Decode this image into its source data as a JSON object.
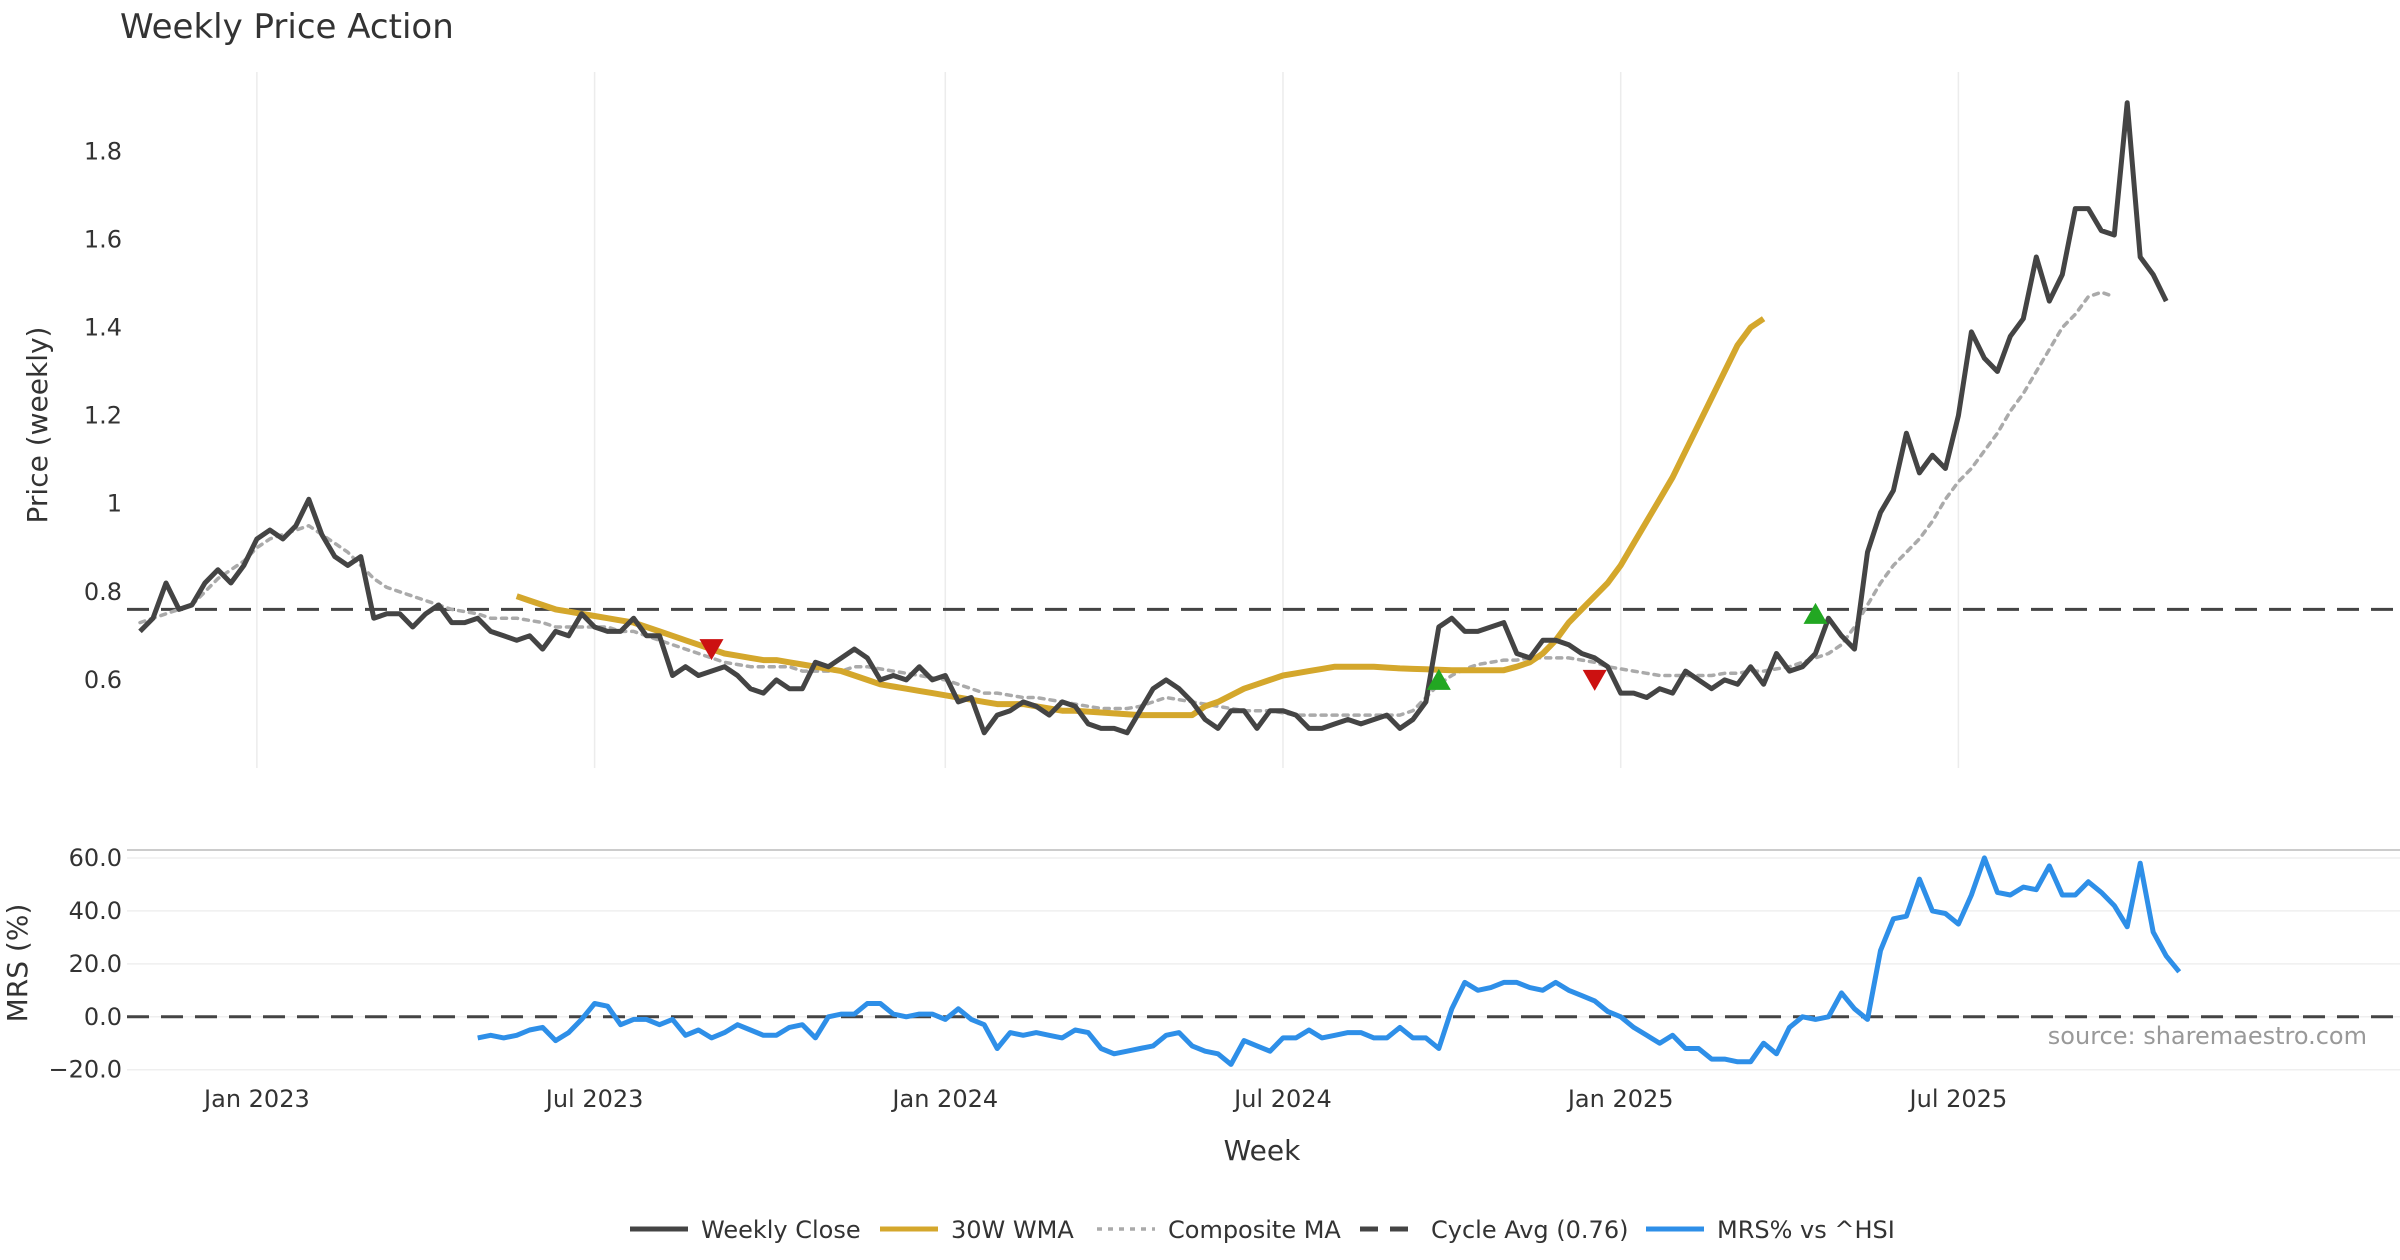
{
  "chart_data": {
    "type": "line",
    "title": "Weekly Price Action",
    "xlabel": "Week",
    "x_ticks": [
      "Jan 2023",
      "Jul 2023",
      "Jan 2024",
      "Jul 2024",
      "Jan 2025",
      "Jul 2025"
    ],
    "x_range_weeks": [
      -10,
      165
    ],
    "price_panel": {
      "ylabel": "Price (weekly)",
      "ylim": [
        0.4,
        1.98
      ],
      "y_ticks": [
        "0.6",
        "0.8",
        "1",
        "1.2",
        "1.4",
        "1.6",
        "1.8"
      ],
      "grid": true
    },
    "mrs_panel": {
      "ylabel": "MRS (%)",
      "ylim": [
        -22,
        63
      ],
      "y_ticks": [
        "−20.0",
        "0.0",
        "20.0",
        "40.0",
        "60.0"
      ],
      "grid": true
    },
    "series": [
      {
        "name": "Weekly Close",
        "panel": "price",
        "color": "#444444",
        "style": "solid",
        "start_week": -9,
        "values": [
          0.71,
          0.74,
          0.82,
          0.76,
          0.77,
          0.82,
          0.85,
          0.82,
          0.86,
          0.92,
          0.94,
          0.92,
          0.95,
          1.01,
          0.93,
          0.88,
          0.86,
          0.88,
          0.74,
          0.75,
          0.75,
          0.72,
          0.75,
          0.77,
          0.73,
          0.73,
          0.74,
          0.71,
          0.7,
          0.69,
          0.7,
          0.67,
          0.71,
          0.7,
          0.75,
          0.72,
          0.71,
          0.71,
          0.74,
          0.7,
          0.7,
          0.61,
          0.63,
          0.61,
          0.62,
          0.63,
          0.61,
          0.58,
          0.57,
          0.6,
          0.58,
          0.58,
          0.64,
          0.63,
          0.65,
          0.67,
          0.65,
          0.6,
          0.61,
          0.6,
          0.63,
          0.6,
          0.61,
          0.55,
          0.56,
          0.48,
          0.52,
          0.53,
          0.55,
          0.54,
          0.52,
          0.55,
          0.54,
          0.5,
          0.49,
          0.49,
          0.48,
          0.53,
          0.58,
          0.6,
          0.58,
          0.55,
          0.51,
          0.49,
          0.53,
          0.53,
          0.49,
          0.53,
          0.53,
          0.52,
          0.49,
          0.49,
          0.5,
          0.51,
          0.5,
          0.51,
          0.52,
          0.49,
          0.51,
          0.55,
          0.72,
          0.74,
          0.71,
          0.71,
          0.72,
          0.73,
          0.66,
          0.65,
          0.69,
          0.69,
          0.68,
          0.66,
          0.65,
          0.63,
          0.57,
          0.57,
          0.56,
          0.58,
          0.57,
          0.62,
          0.6,
          0.58,
          0.6,
          0.59,
          0.63,
          0.59,
          0.66,
          0.62,
          0.63,
          0.66,
          0.74,
          0.7,
          0.67,
          0.89,
          0.98,
          1.03,
          1.16,
          1.07,
          1.11,
          1.08,
          1.2,
          1.39,
          1.33,
          1.3,
          1.38,
          1.42,
          1.56,
          1.46,
          1.52,
          1.67,
          1.67,
          1.62,
          1.61,
          1.91,
          1.56,
          1.52,
          1.46
        ]
      },
      {
        "name": "30W WMA",
        "panel": "price",
        "color": "#D4A72C",
        "style": "solid",
        "start_week": 20,
        "values": [
          0.79,
          0.78,
          0.77,
          0.76,
          0.755,
          0.75,
          0.745,
          0.74,
          0.735,
          0.73,
          0.72,
          0.71,
          0.7,
          0.69,
          0.68,
          0.67,
          0.66,
          0.655,
          0.65,
          0.645,
          0.645,
          0.64,
          0.635,
          0.63,
          0.625,
          0.62,
          0.61,
          0.6,
          0.59,
          0.585,
          0.58,
          0.575,
          0.57,
          0.565,
          0.56,
          0.555,
          0.55,
          0.545,
          0.545,
          0.545,
          0.54,
          0.535,
          0.53,
          0.53,
          0.528,
          0.526,
          0.524,
          0.522,
          0.52,
          0.52,
          0.52,
          0.52,
          0.52,
          0.54,
          0.55,
          0.565,
          0.58,
          0.59,
          0.6,
          0.61,
          0.615,
          0.62,
          0.625,
          0.63,
          0.63,
          0.63,
          0.63,
          0.628,
          0.626,
          0.625,
          0.624,
          0.623,
          0.622,
          0.622,
          0.622,
          0.622,
          0.622,
          0.63,
          0.64,
          0.66,
          0.69,
          0.73,
          0.76,
          0.79,
          0.82,
          0.86,
          0.91,
          0.96,
          1.01,
          1.06,
          1.12,
          1.18,
          1.24,
          1.3,
          1.36,
          1.4,
          1.42
        ]
      },
      {
        "name": "Composite MA",
        "panel": "price",
        "color": "#AAAAAA",
        "style": "dotted",
        "start_week": -9,
        "values": [
          0.73,
          0.74,
          0.75,
          0.76,
          0.77,
          0.8,
          0.83,
          0.85,
          0.87,
          0.9,
          0.92,
          0.93,
          0.94,
          0.95,
          0.93,
          0.91,
          0.89,
          0.86,
          0.83,
          0.81,
          0.8,
          0.79,
          0.78,
          0.77,
          0.76,
          0.755,
          0.75,
          0.74,
          0.74,
          0.74,
          0.735,
          0.73,
          0.72,
          0.72,
          0.72,
          0.72,
          0.72,
          0.71,
          0.71,
          0.7,
          0.69,
          0.68,
          0.67,
          0.66,
          0.65,
          0.64,
          0.635,
          0.63,
          0.63,
          0.63,
          0.63,
          0.62,
          0.62,
          0.62,
          0.62,
          0.63,
          0.63,
          0.625,
          0.62,
          0.615,
          0.61,
          0.605,
          0.6,
          0.59,
          0.58,
          0.57,
          0.57,
          0.565,
          0.56,
          0.56,
          0.555,
          0.55,
          0.545,
          0.54,
          0.535,
          0.535,
          0.535,
          0.54,
          0.55,
          0.56,
          0.555,
          0.55,
          0.545,
          0.54,
          0.535,
          0.53,
          0.53,
          0.53,
          0.525,
          0.52,
          0.52,
          0.52,
          0.52,
          0.52,
          0.52,
          0.52,
          0.52,
          0.52,
          0.53,
          0.56,
          0.59,
          0.61,
          0.625,
          0.635,
          0.64,
          0.645,
          0.645,
          0.65,
          0.65,
          0.65,
          0.65,
          0.645,
          0.64,
          0.63,
          0.625,
          0.62,
          0.615,
          0.61,
          0.61,
          0.61,
          0.61,
          0.61,
          0.615,
          0.615,
          0.62,
          0.62,
          0.625,
          0.63,
          0.64,
          0.65,
          0.66,
          0.68,
          0.72,
          0.77,
          0.82,
          0.86,
          0.89,
          0.92,
          0.96,
          1.01,
          1.05,
          1.08,
          1.12,
          1.16,
          1.21,
          1.25,
          1.3,
          1.35,
          1.4,
          1.43,
          1.47,
          1.48,
          1.47
        ]
      },
      {
        "name": "Cycle Avg (0.76)",
        "panel": "price",
        "color": "#444444",
        "style": "dashed",
        "constant": 0.76
      },
      {
        "name": "MRS% vs ^HSI",
        "panel": "mrs",
        "color": "#2E8FE8",
        "style": "solid",
        "start_week": 17,
        "values": [
          -8,
          -7,
          -8,
          -7,
          -5,
          -4,
          -9,
          -6,
          -1,
          5,
          4,
          -3,
          -1,
          -1,
          -3,
          -1,
          -7,
          -5,
          -8,
          -6,
          -3,
          -5,
          -7,
          -7,
          -4,
          -3,
          -8,
          0,
          1,
          1,
          5,
          5,
          1,
          0,
          1,
          1,
          -1,
          3,
          -1,
          -3,
          -12,
          -6,
          -7,
          -6,
          -7,
          -8,
          -5,
          -6,
          -12,
          -14,
          -13,
          -12,
          -11,
          -7,
          -6,
          -11,
          -13,
          -14,
          -18,
          -9,
          -11,
          -13,
          -8,
          -8,
          -5,
          -8,
          -7,
          -6,
          -6,
          -8,
          -8,
          -4,
          -8,
          -8,
          -12,
          3,
          13,
          10,
          11,
          13,
          13,
          11,
          10,
          13,
          10,
          8,
          6,
          2,
          0,
          -4,
          -7,
          -10,
          -7,
          -12,
          -12,
          -16,
          -16,
          -17,
          -17,
          -10,
          -14,
          -4,
          0,
          -1,
          0,
          9,
          3,
          -1,
          25,
          37,
          38,
          52,
          40,
          39,
          35,
          46,
          60,
          47,
          46,
          49,
          48,
          57,
          46,
          46,
          51,
          47,
          42,
          34,
          58,
          32,
          23,
          17
        ]
      },
      {
        "name": "MRS zero line",
        "panel": "mrs",
        "color": "#444444",
        "style": "dashed",
        "constant": 0,
        "in_legend": false
      }
    ],
    "markers": [
      {
        "type": "sell",
        "week": 35,
        "value": 0.67,
        "color": "#CC1111"
      },
      {
        "type": "buy",
        "week": 91,
        "value": 0.6,
        "color": "#22A722"
      },
      {
        "type": "sell",
        "week": 103,
        "value": 0.6,
        "color": "#CC1111"
      },
      {
        "type": "buy",
        "week": 120,
        "value": 0.75,
        "color": "#22A722"
      }
    ],
    "legend_position": "bottom-center"
  },
  "source_text": "source: sharemaestro.com"
}
